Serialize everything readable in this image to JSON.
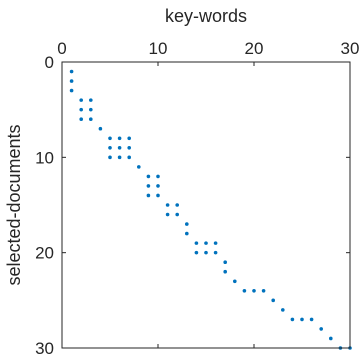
{
  "chart_data": {
    "type": "scatter",
    "title": "",
    "xlabel": "key-words",
    "ylabel": "selected-documents",
    "xlim": [
      0,
      30
    ],
    "ylim": [
      0,
      30
    ],
    "x_axis_position": "top",
    "y_axis_reversed": true,
    "xticks": [
      "0",
      "10",
      "20",
      "30"
    ],
    "yticks": [
      "0",
      "10",
      "20",
      "30"
    ],
    "grid": false,
    "marker_color": "#0072BD",
    "points": [
      {
        "x": 1,
        "y": 1
      },
      {
        "x": 1,
        "y": 2
      },
      {
        "x": 1,
        "y": 3
      },
      {
        "x": 2,
        "y": 4
      },
      {
        "x": 3,
        "y": 4
      },
      {
        "x": 2,
        "y": 5
      },
      {
        "x": 3,
        "y": 5
      },
      {
        "x": 2,
        "y": 6
      },
      {
        "x": 3,
        "y": 6
      },
      {
        "x": 4,
        "y": 7
      },
      {
        "x": 5,
        "y": 8
      },
      {
        "x": 6,
        "y": 8
      },
      {
        "x": 7,
        "y": 8
      },
      {
        "x": 5,
        "y": 9
      },
      {
        "x": 6,
        "y": 9
      },
      {
        "x": 7,
        "y": 9
      },
      {
        "x": 5,
        "y": 10
      },
      {
        "x": 6,
        "y": 10
      },
      {
        "x": 7,
        "y": 10
      },
      {
        "x": 8,
        "y": 11
      },
      {
        "x": 9,
        "y": 12
      },
      {
        "x": 10,
        "y": 12
      },
      {
        "x": 9,
        "y": 13
      },
      {
        "x": 10,
        "y": 13
      },
      {
        "x": 9,
        "y": 14
      },
      {
        "x": 10,
        "y": 14
      },
      {
        "x": 11,
        "y": 15
      },
      {
        "x": 12,
        "y": 15
      },
      {
        "x": 11,
        "y": 16
      },
      {
        "x": 12,
        "y": 16
      },
      {
        "x": 13,
        "y": 17
      },
      {
        "x": 13,
        "y": 18
      },
      {
        "x": 14,
        "y": 19
      },
      {
        "x": 15,
        "y": 19
      },
      {
        "x": 16,
        "y": 19
      },
      {
        "x": 14,
        "y": 20
      },
      {
        "x": 15,
        "y": 20
      },
      {
        "x": 16,
        "y": 20
      },
      {
        "x": 17,
        "y": 21
      },
      {
        "x": 17,
        "y": 22
      },
      {
        "x": 18,
        "y": 23
      },
      {
        "x": 19,
        "y": 24
      },
      {
        "x": 20,
        "y": 24
      },
      {
        "x": 21,
        "y": 24
      },
      {
        "x": 22,
        "y": 25
      },
      {
        "x": 23,
        "y": 26
      },
      {
        "x": 24,
        "y": 27
      },
      {
        "x": 25,
        "y": 27
      },
      {
        "x": 26,
        "y": 27
      },
      {
        "x": 27,
        "y": 28
      },
      {
        "x": 28,
        "y": 29
      },
      {
        "x": 29,
        "y": 30
      },
      {
        "x": 30,
        "y": 30
      }
    ]
  }
}
